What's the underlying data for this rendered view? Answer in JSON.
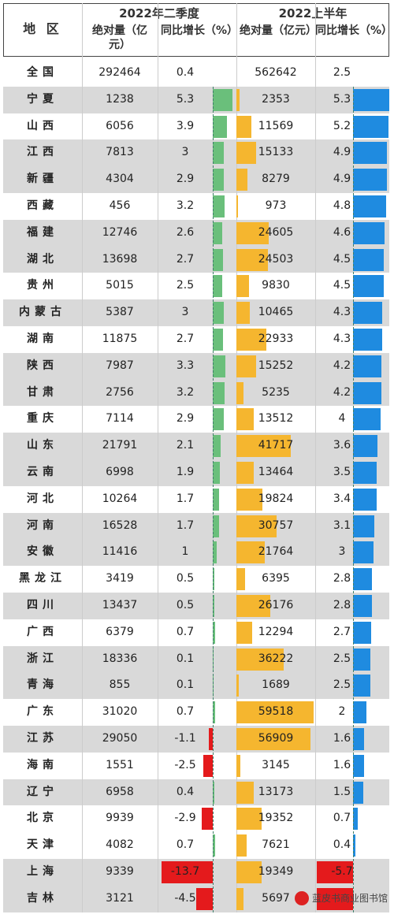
{
  "header": {
    "region_label": "地 区",
    "q2_title": "2022年二季度",
    "h1_title": "2022上半年",
    "abs_label": "绝对量（亿元）",
    "yoy_label": "同比增长（%）"
  },
  "chart_data": {
    "type": "table",
    "columns": [
      "地区",
      "2022年二季度 绝对量（亿元）",
      "2022年二季度 同比增长（%）",
      "2022上半年 绝对量（亿元）",
      "2022上半年 同比增长（%）"
    ],
    "rows": [
      {
        "region": "全国",
        "q2_abs": "292464",
        "q2_yoy": "0.4",
        "h1_abs": "562642",
        "h1_yoy": "2.5"
      },
      {
        "region": "宁夏",
        "q2_abs": "1238",
        "q2_yoy": "5.3",
        "h1_abs": "2353",
        "h1_yoy": "5.3"
      },
      {
        "region": "山西",
        "q2_abs": "6056",
        "q2_yoy": "3.9",
        "h1_abs": "11569",
        "h1_yoy": "5.2"
      },
      {
        "region": "江西",
        "q2_abs": "7813",
        "q2_yoy": "3",
        "h1_abs": "15133",
        "h1_yoy": "4.9"
      },
      {
        "region": "新疆",
        "q2_abs": "4304",
        "q2_yoy": "2.9",
        "h1_abs": "8279",
        "h1_yoy": "4.9"
      },
      {
        "region": "西藏",
        "q2_abs": "456",
        "q2_yoy": "3.2",
        "h1_abs": "973",
        "h1_yoy": "4.8"
      },
      {
        "region": "福建",
        "q2_abs": "12746",
        "q2_yoy": "2.6",
        "h1_abs": "24605",
        "h1_yoy": "4.6"
      },
      {
        "region": "湖北",
        "q2_abs": "13698",
        "q2_yoy": "2.7",
        "h1_abs": "24503",
        "h1_yoy": "4.5"
      },
      {
        "region": "贵州",
        "q2_abs": "5015",
        "q2_yoy": "2.5",
        "h1_abs": "9830",
        "h1_yoy": "4.5"
      },
      {
        "region": "内蒙古",
        "q2_abs": "5387",
        "q2_yoy": "3",
        "h1_abs": "10465",
        "h1_yoy": "4.3"
      },
      {
        "region": "湖南",
        "q2_abs": "11875",
        "q2_yoy": "2.7",
        "h1_abs": "22933",
        "h1_yoy": "4.3"
      },
      {
        "region": "陕西",
        "q2_abs": "7987",
        "q2_yoy": "3.3",
        "h1_abs": "15252",
        "h1_yoy": "4.2"
      },
      {
        "region": "甘肃",
        "q2_abs": "2756",
        "q2_yoy": "3.2",
        "h1_abs": "5235",
        "h1_yoy": "4.2"
      },
      {
        "region": "重庆",
        "q2_abs": "7114",
        "q2_yoy": "2.9",
        "h1_abs": "13512",
        "h1_yoy": "4"
      },
      {
        "region": "山东",
        "q2_abs": "21791",
        "q2_yoy": "2.1",
        "h1_abs": "41717",
        "h1_yoy": "3.6"
      },
      {
        "region": "云南",
        "q2_abs": "6998",
        "q2_yoy": "1.9",
        "h1_abs": "13464",
        "h1_yoy": "3.5"
      },
      {
        "region": "河北",
        "q2_abs": "10264",
        "q2_yoy": "1.7",
        "h1_abs": "19824",
        "h1_yoy": "3.4"
      },
      {
        "region": "河南",
        "q2_abs": "16528",
        "q2_yoy": "1.7",
        "h1_abs": "30757",
        "h1_yoy": "3.1"
      },
      {
        "region": "安徽",
        "q2_abs": "11416",
        "q2_yoy": "1",
        "h1_abs": "21764",
        "h1_yoy": "3"
      },
      {
        "region": "黑龙江",
        "q2_abs": "3419",
        "q2_yoy": "0.5",
        "h1_abs": "6395",
        "h1_yoy": "2.8"
      },
      {
        "region": "四川",
        "q2_abs": "13437",
        "q2_yoy": "0.5",
        "h1_abs": "26176",
        "h1_yoy": "2.8"
      },
      {
        "region": "广西",
        "q2_abs": "6379",
        "q2_yoy": "0.7",
        "h1_abs": "12294",
        "h1_yoy": "2.7"
      },
      {
        "region": "浙江",
        "q2_abs": "18336",
        "q2_yoy": "0.1",
        "h1_abs": "36222",
        "h1_yoy": "2.5"
      },
      {
        "region": "青海",
        "q2_abs": "855",
        "q2_yoy": "0.1",
        "h1_abs": "1689",
        "h1_yoy": "2.5"
      },
      {
        "region": "广东",
        "q2_abs": "31020",
        "q2_yoy": "0.7",
        "h1_abs": "59518",
        "h1_yoy": "2"
      },
      {
        "region": "江苏",
        "q2_abs": "29050",
        "q2_yoy": "-1.1",
        "h1_abs": "56909",
        "h1_yoy": "1.6"
      },
      {
        "region": "海南",
        "q2_abs": "1551",
        "q2_yoy": "-2.5",
        "h1_abs": "3145",
        "h1_yoy": "1.6"
      },
      {
        "region": "辽宁",
        "q2_abs": "6958",
        "q2_yoy": "0.4",
        "h1_abs": "13173",
        "h1_yoy": "1.5"
      },
      {
        "region": "北京",
        "q2_abs": "9939",
        "q2_yoy": "-2.9",
        "h1_abs": "19352",
        "h1_yoy": "0.7"
      },
      {
        "region": "天津",
        "q2_abs": "4082",
        "q2_yoy": "0.7",
        "h1_abs": "7621",
        "h1_yoy": "0.4"
      },
      {
        "region": "上海",
        "q2_abs": "9339",
        "q2_yoy": "-13.7",
        "h1_abs": "19349",
        "h1_yoy": "-5.7"
      },
      {
        "region": "吉林",
        "q2_abs": "3121",
        "q2_yoy": "-4.5",
        "h1_abs": "5697",
        "h1_yoy": ""
      }
    ],
    "bar_colors": {
      "q2_yoy_pos": "#6abf7b",
      "q2_yoy_neg": "#e41a1c",
      "h1_abs": "#f5b62f",
      "h1_yoy_pos": "#1f8be0",
      "h1_yoy_neg": "#e41a1c"
    },
    "shaded_rows": [
      1,
      3,
      4,
      6,
      7,
      9,
      11,
      12,
      14,
      15,
      17,
      18,
      20,
      22,
      23,
      25,
      27,
      30,
      31
    ],
    "bar_scales": {
      "q2_yoy_half_range": 14,
      "h1_abs_max": 59518,
      "h1_yoy_max": 5.3,
      "h1_yoy_neg_max": 5.7
    }
  },
  "watermark": {
    "text": "蓝皮书商业图书馆"
  }
}
